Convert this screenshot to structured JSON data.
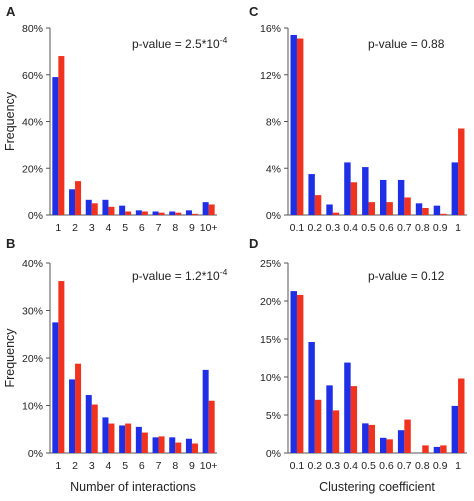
{
  "colors": {
    "series_a": "#1f2fe6",
    "series_b": "#f0321e",
    "axis": "#555555"
  },
  "labels": {
    "ylabel": "Frequency",
    "xlabel_left": "Number of interactions",
    "xlabel_right": "Clustering coefficient"
  },
  "chart_data": [
    {
      "panel": "A",
      "type": "bar",
      "annotation": "p-value = 2.5*10",
      "annotation_exp": "-4",
      "categories": [
        "1",
        "2",
        "3",
        "4",
        "5",
        "6",
        "7",
        "8",
        "9",
        "10+"
      ],
      "ylim": [
        0,
        80
      ],
      "yticks": [
        "0%",
        "20%",
        "40%",
        "60%",
        "80%"
      ],
      "series": [
        {
          "values": [
            59,
            11,
            6.5,
            6.5,
            4,
            2,
            1.5,
            1.5,
            2,
            5.5
          ]
        },
        {
          "values": [
            68,
            14.5,
            5,
            3.5,
            1.5,
            1.5,
            1,
            1,
            0.5,
            4.5
          ]
        }
      ]
    },
    {
      "panel": "B",
      "type": "bar",
      "annotation": "p-value = 1.2*10",
      "annotation_exp": "-4",
      "categories": [
        "1",
        "2",
        "3",
        "4",
        "5",
        "6",
        "7",
        "8",
        "9",
        "10+"
      ],
      "ylim": [
        0,
        40
      ],
      "yticks": [
        "0%",
        "10%",
        "20%",
        "30%",
        "40%"
      ],
      "series": [
        {
          "values": [
            27.5,
            15.5,
            12.2,
            7.5,
            5.8,
            5.5,
            3.3,
            3.3,
            3,
            17.5
          ]
        },
        {
          "values": [
            36.2,
            18.8,
            10.2,
            6.2,
            6.2,
            4.3,
            3.5,
            2.2,
            2,
            11
          ]
        }
      ]
    },
    {
      "panel": "C",
      "type": "bar",
      "annotation": "p-value = 0.88",
      "categories": [
        "0.1",
        "0.2",
        "0.3",
        "0.4",
        "0.5",
        "0.6",
        "0.7",
        "0.8",
        "0.9",
        "1"
      ],
      "ylim": [
        0,
        16
      ],
      "yticks": [
        "0%",
        "4%",
        "8%",
        "12%",
        "16%"
      ],
      "series": [
        {
          "values": [
            15.4,
            3.5,
            0.9,
            4.5,
            4.1,
            3,
            3,
            1,
            0.8,
            4.5
          ]
        },
        {
          "values": [
            15.1,
            1.7,
            0.2,
            2.8,
            1.1,
            1.1,
            1.5,
            0.6,
            0.1,
            7.4
          ]
        }
      ]
    },
    {
      "panel": "D",
      "type": "bar",
      "annotation": "p-value = 0.12",
      "categories": [
        "0.1",
        "0.2",
        "0.3",
        "0.4",
        "0.5",
        "0.6",
        "0.7",
        "0.8",
        "0.9",
        "1"
      ],
      "ylim": [
        0,
        25
      ],
      "yticks": [
        "0%",
        "5%",
        "10%",
        "15%",
        "20%",
        "25%"
      ],
      "series": [
        {
          "values": [
            21.3,
            14.6,
            8.9,
            11.9,
            3.9,
            2,
            3,
            0,
            0.8,
            6.2
          ]
        },
        {
          "values": [
            20.8,
            7,
            5.6,
            8.8,
            3.7,
            1.8,
            4.4,
            1,
            1,
            9.8
          ]
        }
      ]
    }
  ]
}
